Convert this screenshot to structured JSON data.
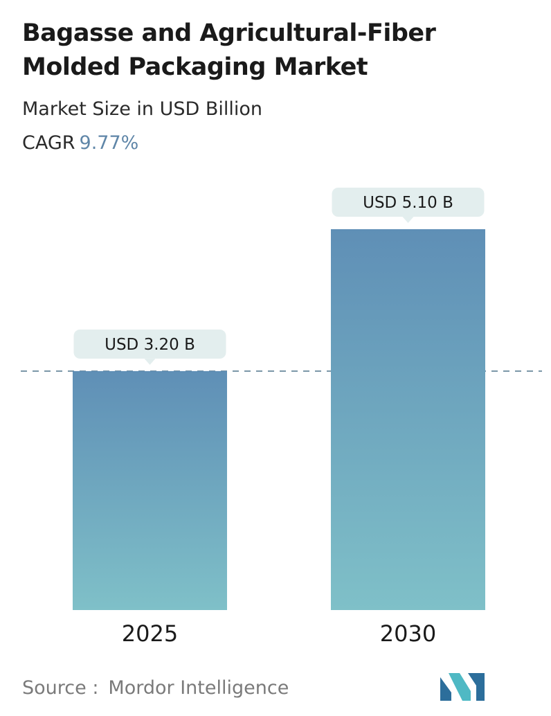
{
  "header": {
    "title": "Bagasse and Agricultural-Fiber Molded Packaging Market",
    "subtitle": "Market Size in USD Billion",
    "cagr_label": "CAGR",
    "cagr_value": "9.77%"
  },
  "footer": {
    "source_label": "Source :",
    "source_name": "Mordor Intelligence",
    "logo_icon": "mordor-intelligence-logo-icon"
  },
  "colors": {
    "bar_top": "#5f8fb6",
    "bar_bottom": "#7fc0c8",
    "callout_bg": "#e3eeee",
    "dashed_line": "#5c7f94",
    "cagr_accent": "#5f86a8",
    "logo_dark": "#2c6e9b",
    "logo_light": "#4fb9c4"
  },
  "chart_data": {
    "type": "bar",
    "categories": [
      "2025",
      "2030"
    ],
    "values": [
      3.2,
      5.1
    ],
    "data_labels": [
      "USD 3.20 B",
      "USD 5.10 B"
    ],
    "reference_line": {
      "value": 3.2,
      "style": "dashed"
    },
    "ylim": [
      0,
      5.1
    ],
    "grid": false,
    "title": "",
    "xlabel": "",
    "ylabel": ""
  }
}
